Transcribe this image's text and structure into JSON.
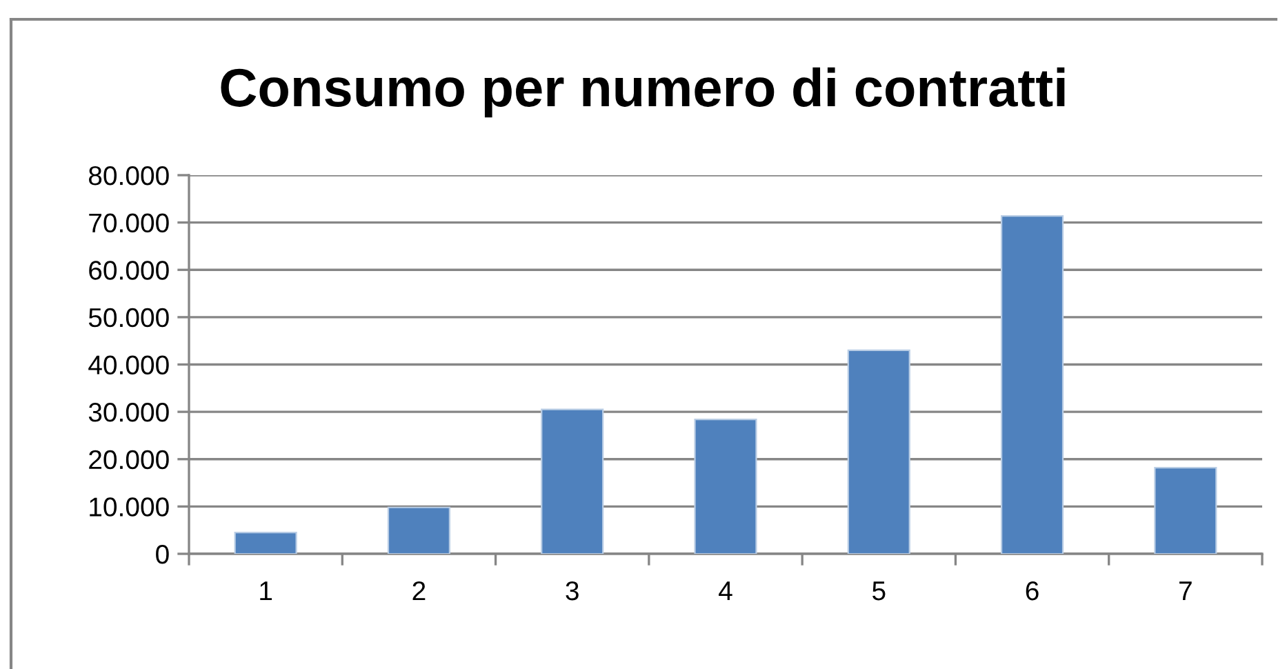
{
  "chart_data": {
    "type": "bar",
    "title": "Consumo per numero di contratti",
    "categories": [
      "1",
      "2",
      "3",
      "4",
      "5",
      "6",
      "7"
    ],
    "values": [
      4500,
      9800,
      30500,
      28400,
      43000,
      71400,
      18200
    ],
    "color": "#4f81bd",
    "ylim": [
      0,
      80000
    ],
    "yticks": [
      {
        "value": 0,
        "label": "0"
      },
      {
        "value": 10000,
        "label": "10.000"
      },
      {
        "value": 20000,
        "label": "20.000"
      },
      {
        "value": 30000,
        "label": "30.000"
      },
      {
        "value": 40000,
        "label": "40.000"
      },
      {
        "value": 50000,
        "label": "50.000"
      },
      {
        "value": 60000,
        "label": "60.000"
      },
      {
        "value": 70000,
        "label": "70.000"
      },
      {
        "value": 80000,
        "label": "80.000"
      }
    ],
    "grid": "y"
  }
}
